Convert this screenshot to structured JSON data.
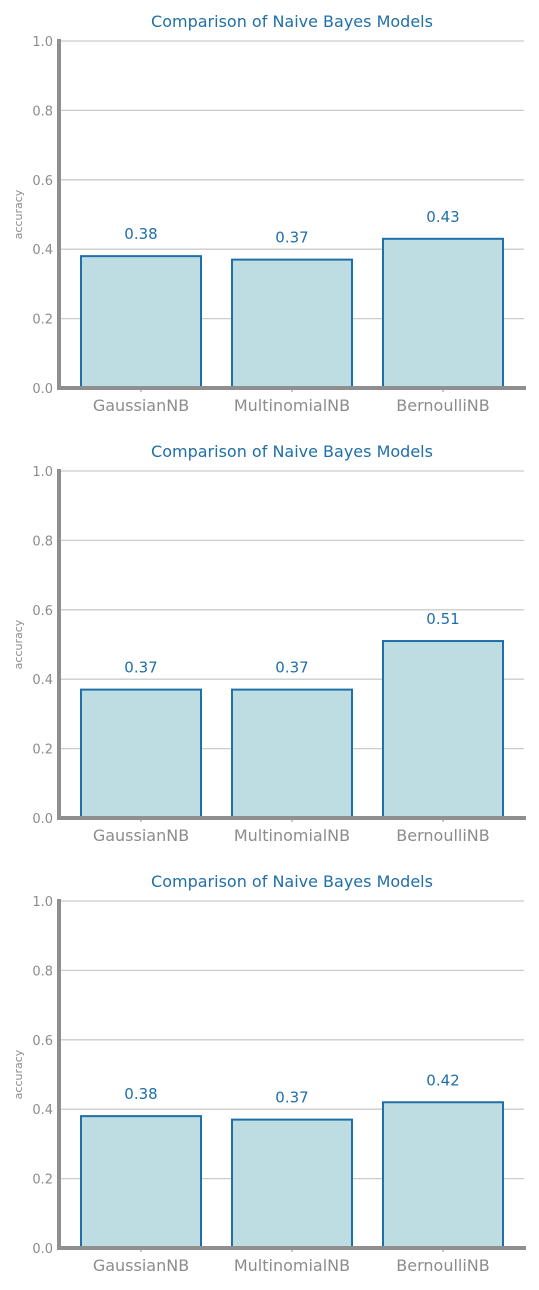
{
  "colors": {
    "bar_fill": "#bddde2",
    "bar_stroke": "#1f6fa8",
    "grid": "#cccccc",
    "axis": "#8f8f8f",
    "text": "#8c8c8c",
    "accent": "#1f6fa8"
  },
  "chart_data": [
    {
      "type": "bar",
      "title": "Comparison of Naive Bayes Models",
      "ylabel": "accuracy",
      "xlabel": "",
      "categories": [
        "GaussianNB",
        "MultinomialNB",
        "BernoulliNB"
      ],
      "values": [
        0.38,
        0.37,
        0.43
      ],
      "data_labels": [
        "0.38",
        "0.37",
        "0.43"
      ],
      "ylim": [
        0,
        1
      ],
      "yticks": [
        "0.0",
        "0.2",
        "0.4",
        "0.6",
        "0.8",
        "1.0"
      ],
      "grid": true,
      "legend": "none"
    },
    {
      "type": "bar",
      "title": "Comparison of Naive Bayes Models",
      "ylabel": "accuracy",
      "xlabel": "",
      "categories": [
        "GaussianNB",
        "MultinomialNB",
        "BernoulliNB"
      ],
      "values": [
        0.37,
        0.37,
        0.51
      ],
      "data_labels": [
        "0.37",
        "0.37",
        "0.51"
      ],
      "ylim": [
        0,
        1
      ],
      "yticks": [
        "0.0",
        "0.2",
        "0.4",
        "0.6",
        "0.8",
        "1.0"
      ],
      "grid": true,
      "legend": "none"
    },
    {
      "type": "bar",
      "title": "Comparison of Naive Bayes Models",
      "ylabel": "accuracy",
      "xlabel": "",
      "categories": [
        "GaussianNB",
        "MultinomialNB",
        "BernoulliNB"
      ],
      "values": [
        0.38,
        0.37,
        0.42
      ],
      "data_labels": [
        "0.38",
        "0.37",
        "0.42"
      ],
      "ylim": [
        0,
        1
      ],
      "yticks": [
        "0.0",
        "0.2",
        "0.4",
        "0.6",
        "0.8",
        "1.0"
      ],
      "grid": true,
      "legend": "none"
    }
  ]
}
